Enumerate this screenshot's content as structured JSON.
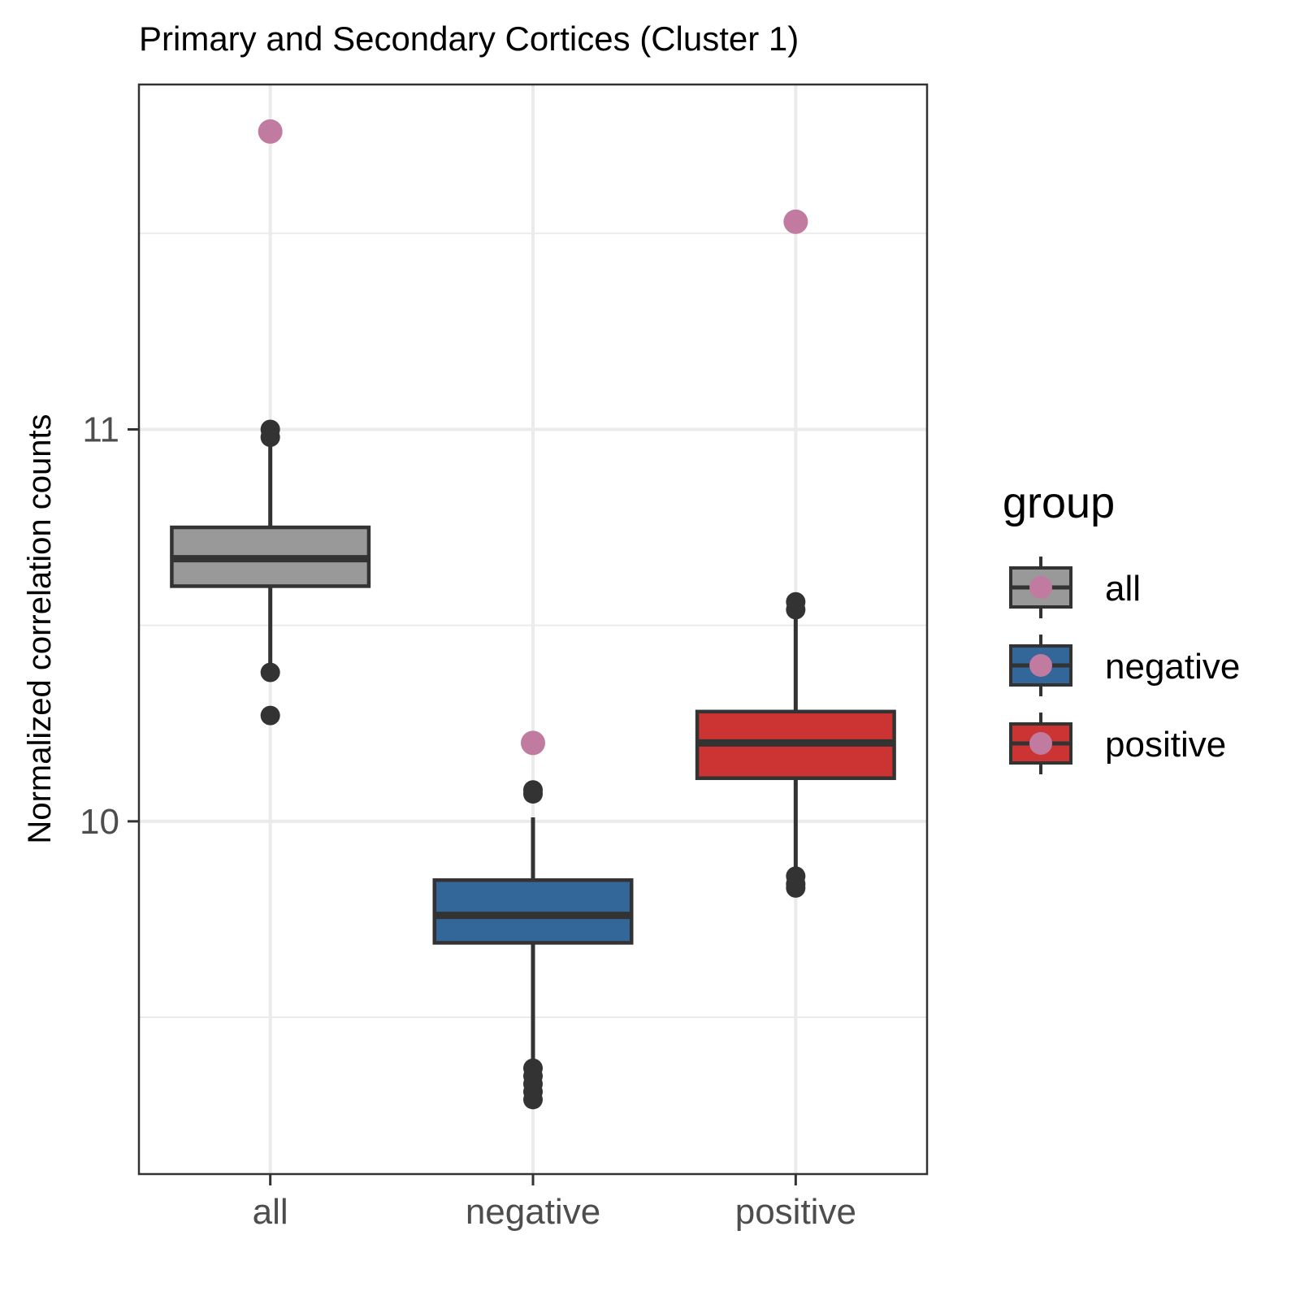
{
  "chart_data": {
    "type": "boxplot",
    "title": "Primary and Secondary Cortices (Cluster 1)",
    "xlabel": "",
    "ylabel": "Normalized correlation counts",
    "ylim": [
      9.1,
      11.88
    ],
    "y_major_ticks": [
      10,
      11
    ],
    "y_minor_ticks": [
      9.5,
      10.5,
      11.5
    ],
    "grid": true,
    "legend": {
      "title": "group",
      "position": "right"
    },
    "categories": [
      "all",
      "negative",
      "positive"
    ],
    "fills": [
      "#999999",
      "#336699",
      "#cc3333"
    ],
    "highlight_color": "#c27ba0",
    "series": [
      {
        "name": "all",
        "q1": 10.6,
        "median": 10.67,
        "q3": 10.75,
        "whisker_low": 10.4,
        "whisker_high": 10.99,
        "outliers": [
          11.0,
          10.98,
          10.38,
          10.27
        ],
        "highlight": 11.76
      },
      {
        "name": "negative",
        "q1": 9.69,
        "median": 9.76,
        "q3": 9.85,
        "whisker_low": 9.39,
        "whisker_high": 10.01,
        "outliers": [
          10.08,
          10.07,
          9.37,
          9.35,
          9.33,
          9.31,
          9.29
        ],
        "highlight": 10.2
      },
      {
        "name": "positive",
        "q1": 10.11,
        "median": 10.2,
        "q3": 10.28,
        "whisker_low": 9.88,
        "whisker_high": 10.52,
        "outliers": [
          10.56,
          10.54,
          9.86,
          9.84,
          9.83
        ],
        "highlight": 11.53
      }
    ]
  }
}
